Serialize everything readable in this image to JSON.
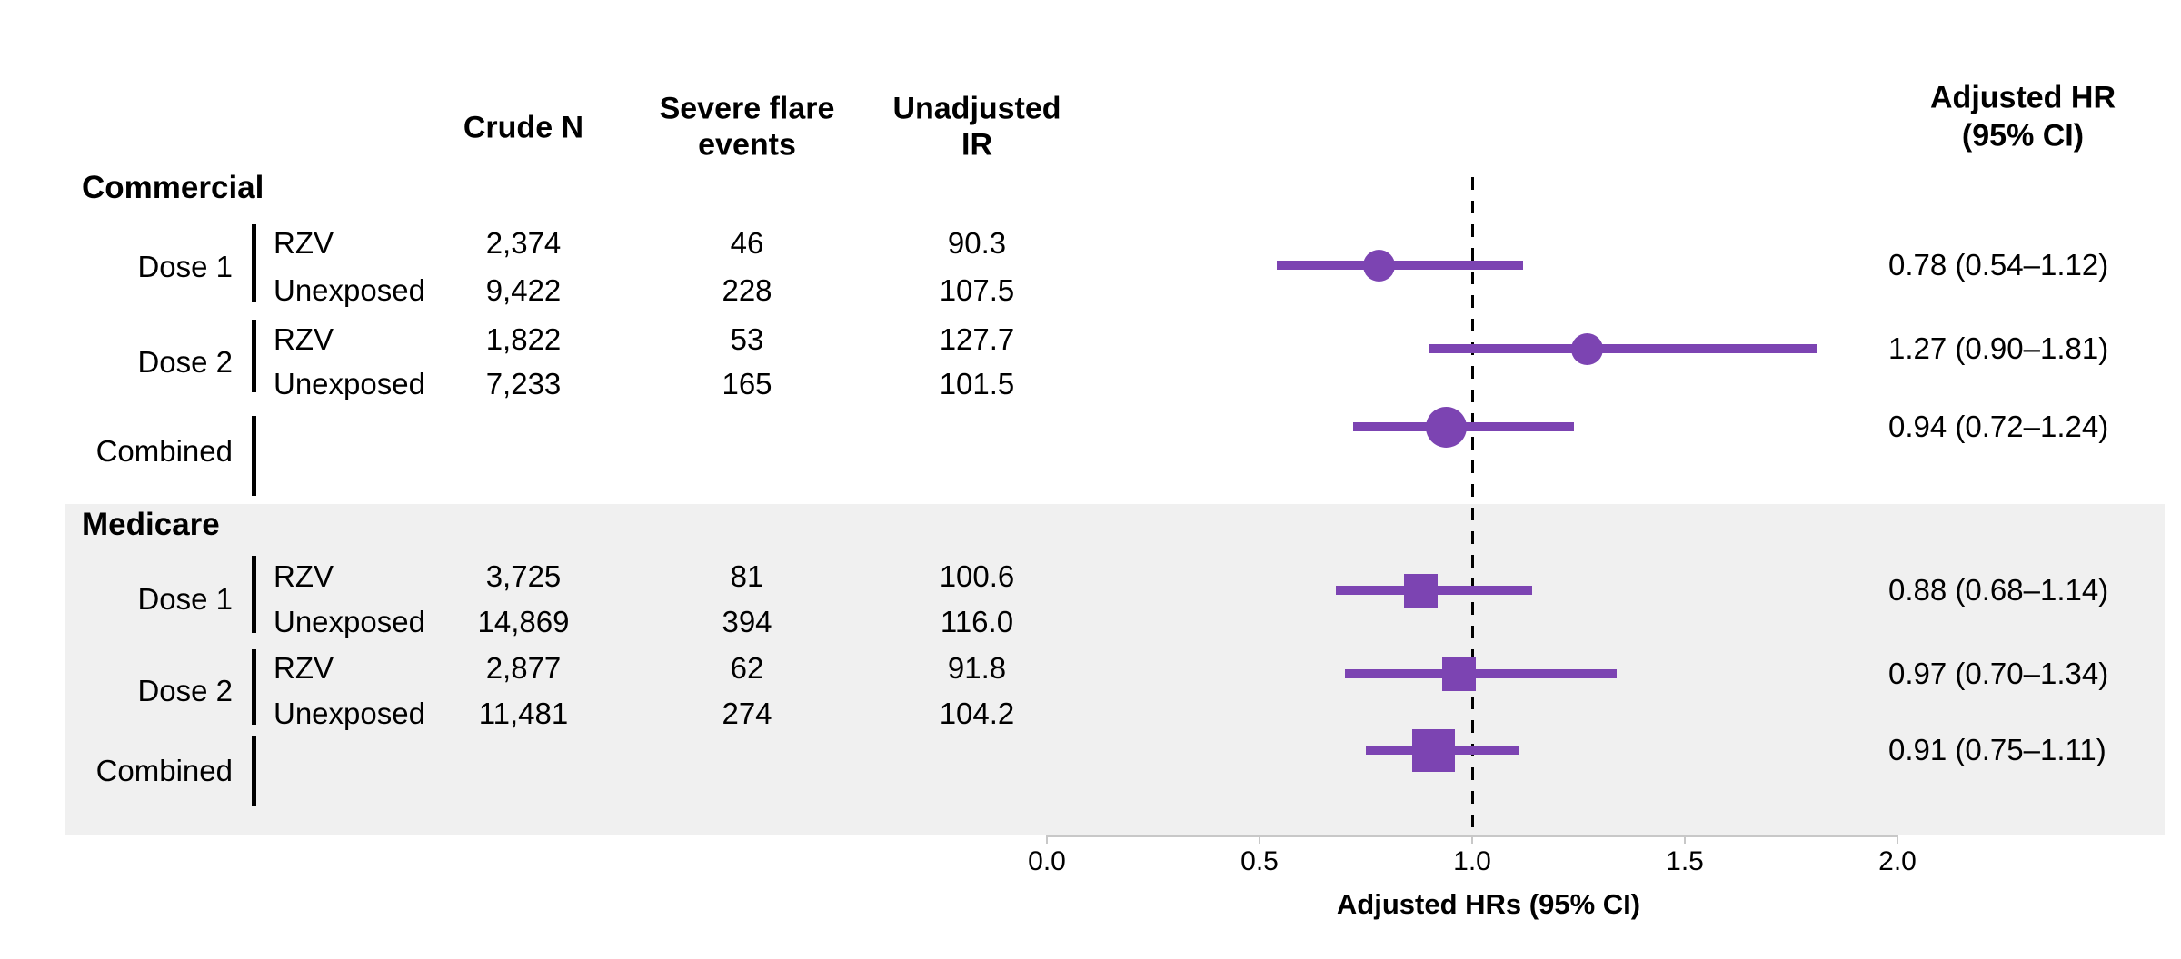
{
  "headers": {
    "crude_n": "Crude N",
    "events_1": "Severe flare",
    "events_2": "events",
    "ir_1": "Unadjusted",
    "ir_2": "IR",
    "hr_1": "Adjusted HR",
    "hr_2": "(95% CI)"
  },
  "axis": {
    "label": "Adjusted HRs (95% CI)",
    "tick_labels": [
      "0.0",
      "0.5",
      "1.0",
      "1.5",
      "2.0"
    ],
    "tick_values": [
      0.0,
      0.5,
      1.0,
      1.5,
      2.0
    ],
    "reference_value": 1.0
  },
  "colors": {
    "marker_purple": "#7C44B2",
    "medicare_band_gray": "#F0F0F0",
    "axis_gray": "#C8C8C8",
    "reference_black": "#000000",
    "text_black": "#000000"
  },
  "chart_data": {
    "type": "scatter",
    "subtype": "forest-plot",
    "xlabel": "Adjusted HRs (95% CI)",
    "xlim": [
      0.0,
      2.0
    ],
    "x_ticks": [
      0.0,
      0.5,
      1.0,
      1.5,
      2.0
    ],
    "reference_line": 1.0,
    "legend_position": "none",
    "grid": false,
    "groups": [
      {
        "label": "Commercial",
        "marker_shape": "circle",
        "rows": [
          {
            "dose": "Dose 1",
            "combined": false,
            "hr": 0.78,
            "ci_low": 0.54,
            "ci_high": 1.12,
            "hr_text": "0.78 (0.54–1.12)",
            "arms": [
              {
                "arm": "RZV",
                "crude_n": 2374,
                "crude_n_text": "2,374",
                "events": 46,
                "events_text": "46",
                "ir": 90.3,
                "ir_text": "90.3"
              },
              {
                "arm": "Unexposed",
                "crude_n": 9422,
                "crude_n_text": "9,422",
                "events": 228,
                "events_text": "228",
                "ir": 107.5,
                "ir_text": "107.5"
              }
            ]
          },
          {
            "dose": "Dose 2",
            "combined": false,
            "hr": 1.27,
            "ci_low": 0.9,
            "ci_high": 1.81,
            "hr_text": "1.27 (0.90–1.81)",
            "arms": [
              {
                "arm": "RZV",
                "crude_n": 1822,
                "crude_n_text": "1,822",
                "events": 53,
                "events_text": "53",
                "ir": 127.7,
                "ir_text": "127.7"
              },
              {
                "arm": "Unexposed",
                "crude_n": 7233,
                "crude_n_text": "7,233",
                "events": 165,
                "events_text": "165",
                "ir": 101.5,
                "ir_text": "101.5"
              }
            ]
          },
          {
            "dose": "Combined",
            "combined": true,
            "hr": 0.94,
            "ci_low": 0.72,
            "ci_high": 1.24,
            "hr_text": "0.94 (0.72–1.24)",
            "arms": []
          }
        ]
      },
      {
        "label": "Medicare",
        "marker_shape": "square",
        "rows": [
          {
            "dose": "Dose 1",
            "combined": false,
            "hr": 0.88,
            "ci_low": 0.68,
            "ci_high": 1.14,
            "hr_text": "0.88 (0.68–1.14)",
            "arms": [
              {
                "arm": "RZV",
                "crude_n": 3725,
                "crude_n_text": "3,725",
                "events": 81,
                "events_text": "81",
                "ir": 100.6,
                "ir_text": "100.6"
              },
              {
                "arm": "Unexposed",
                "crude_n": 14869,
                "crude_n_text": "14,869",
                "events": 394,
                "events_text": "394",
                "ir": 116.0,
                "ir_text": "116.0"
              }
            ]
          },
          {
            "dose": "Dose 2",
            "combined": false,
            "hr": 0.97,
            "ci_low": 0.7,
            "ci_high": 1.34,
            "hr_text": "0.97 (0.70–1.34)",
            "arms": [
              {
                "arm": "RZV",
                "crude_n": 2877,
                "crude_n_text": "2,877",
                "events": 62,
                "events_text": "62",
                "ir": 91.8,
                "ir_text": "91.8"
              },
              {
                "arm": "Unexposed",
                "crude_n": 11481,
                "crude_n_text": "11,481",
                "events": 274,
                "events_text": "274",
                "ir": 104.2,
                "ir_text": "104.2"
              }
            ]
          },
          {
            "dose": "Combined",
            "combined": true,
            "hr": 0.91,
            "ci_low": 0.75,
            "ci_high": 1.11,
            "hr_text": "0.91 (0.75–1.11)",
            "arms": []
          }
        ]
      }
    ]
  }
}
